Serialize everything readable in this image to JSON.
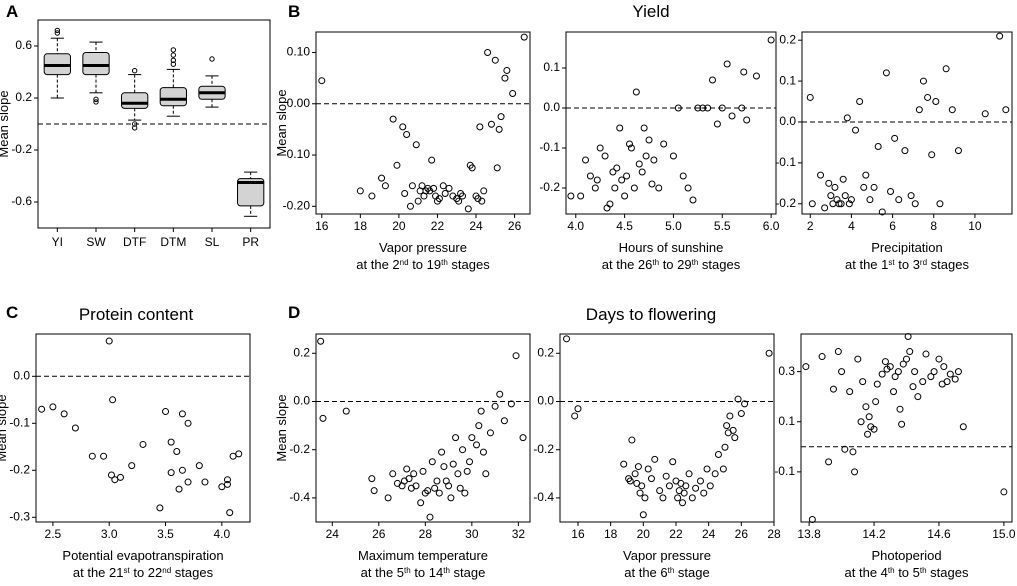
{
  "panel_labels": {
    "a": "A",
    "b": "B",
    "c": "C",
    "d": "D"
  },
  "group_titles": {
    "yield": "Yield",
    "protein": "Protein content",
    "flowering": "Days to flowering"
  },
  "chart_data": [
    {
      "id": "A",
      "type": "box",
      "title": "",
      "xlabel": "",
      "ylabel": "Mean slope",
      "ylim": [
        -0.8,
        0.8
      ],
      "yticks": [
        -0.6,
        -0.2,
        0.2,
        0.6
      ],
      "yticklabels": [
        "-0.6",
        "-0.2",
        "0.2",
        "0.6"
      ],
      "ref_line": 0,
      "categories": [
        "YI",
        "SW",
        "DTF",
        "DTM",
        "SL",
        "PR"
      ],
      "boxes": [
        {
          "q1": 0.38,
          "median": 0.45,
          "q3": 0.54,
          "low": 0.2,
          "high": 0.66,
          "outliers": [
            0.7,
            0.72
          ]
        },
        {
          "q1": 0.38,
          "median": 0.45,
          "q3": 0.55,
          "low": 0.24,
          "high": 0.63,
          "outliers": [
            0.19,
            0.17
          ]
        },
        {
          "q1": 0.12,
          "median": 0.16,
          "q3": 0.24,
          "low": 0.03,
          "high": 0.38,
          "outliers": [
            0.0,
            -0.03,
            0.41
          ]
        },
        {
          "q1": 0.14,
          "median": 0.19,
          "q3": 0.28,
          "low": 0.06,
          "high": 0.42,
          "outliers": [
            0.46,
            0.49,
            0.53,
            0.57
          ]
        },
        {
          "q1": 0.19,
          "median": 0.24,
          "q3": 0.29,
          "low": 0.13,
          "high": 0.37,
          "outliers": [
            0.5
          ]
        },
        {
          "q1": -0.63,
          "median": -0.45,
          "q3": -0.42,
          "low": -0.71,
          "high": -0.37,
          "outliers": []
        }
      ]
    },
    {
      "id": "B1",
      "type": "scatter",
      "group": "yield",
      "ylabel": "Mean slope",
      "xlabel": {
        "line1": "Vapor pressure",
        "pre": "at the 2",
        "sup1": "nd",
        "mid": " to 19",
        "sup2": "th",
        "post": " stages"
      },
      "xlim": [
        15.7,
        26.8
      ],
      "ylim": [
        -0.215,
        0.14
      ],
      "xticks": [
        16,
        18,
        20,
        22,
        24,
        26
      ],
      "xticklabels": [
        "16",
        "18",
        "20",
        "22",
        "24",
        "26"
      ],
      "yticks": [
        -0.2,
        -0.1,
        0.0,
        0.1
      ],
      "yticklabels": [
        "-0.20",
        "-0.10",
        "0.00",
        "0.10"
      ],
      "ref_line": 0,
      "x": [
        16.0,
        18.0,
        18.6,
        19.1,
        19.3,
        19.7,
        19.9,
        20.2,
        20.3,
        20.4,
        20.6,
        20.7,
        20.9,
        21.0,
        21.1,
        21.2,
        21.3,
        21.4,
        21.5,
        21.6,
        21.7,
        21.8,
        21.9,
        22.0,
        22.1,
        22.3,
        22.4,
        22.6,
        22.8,
        23.0,
        23.1,
        23.2,
        23.3,
        23.6,
        23.7,
        23.8,
        24.0,
        24.1,
        24.2,
        24.3,
        24.4,
        24.6,
        24.8,
        25.0,
        25.1,
        25.2,
        25.3,
        25.5,
        25.6,
        25.9,
        26.5
      ],
      "y": [
        0.045,
        -0.17,
        -0.18,
        -0.145,
        -0.16,
        -0.03,
        -0.12,
        -0.045,
        -0.175,
        -0.06,
        -0.2,
        -0.16,
        -0.08,
        -0.19,
        -0.17,
        -0.16,
        -0.18,
        -0.17,
        -0.165,
        -0.17,
        -0.11,
        -0.165,
        -0.18,
        -0.19,
        -0.185,
        -0.16,
        -0.175,
        -0.165,
        -0.18,
        -0.185,
        -0.19,
        -0.175,
        -0.18,
        -0.205,
        -0.12,
        -0.125,
        -0.18,
        -0.185,
        -0.045,
        -0.19,
        -0.17,
        0.1,
        -0.04,
        0.085,
        -0.125,
        -0.05,
        -0.025,
        0.05,
        0.065,
        0.02,
        0.13
      ]
    },
    {
      "id": "B2",
      "type": "scatter",
      "group": "yield",
      "ylabel": "",
      "xlabel": {
        "line1": "Hours of sunshine",
        "pre": "at the 26",
        "sup1": "th",
        "mid": " to 29",
        "sup2": "th",
        "post": " stages"
      },
      "xlim": [
        3.9,
        6.05
      ],
      "ylim": [
        -0.265,
        0.19
      ],
      "xticks": [
        4.0,
        4.5,
        5.0,
        5.5,
        6.0
      ],
      "xticklabels": [
        "4.0",
        "4.5",
        "5.0",
        "5.5",
        "6.0"
      ],
      "yticks": [
        -0.2,
        -0.1,
        0.0,
        0.1
      ],
      "yticklabels": [
        "-0.2",
        "-0.1",
        "0.0",
        "0.1"
      ],
      "ref_line": 0,
      "x": [
        3.95,
        4.05,
        4.1,
        4.15,
        4.2,
        4.22,
        4.25,
        4.3,
        4.32,
        4.35,
        4.38,
        4.4,
        4.42,
        4.45,
        4.47,
        4.5,
        4.52,
        4.55,
        4.57,
        4.6,
        4.62,
        4.65,
        4.68,
        4.7,
        4.72,
        4.75,
        4.78,
        4.8,
        4.85,
        4.9,
        5.0,
        5.05,
        5.1,
        5.15,
        5.2,
        5.25,
        5.3,
        5.35,
        5.4,
        5.45,
        5.5,
        5.55,
        5.6,
        5.7,
        5.72,
        5.75,
        5.85,
        6.0
      ],
      "y": [
        -0.22,
        -0.22,
        -0.13,
        -0.17,
        -0.2,
        -0.18,
        -0.1,
        -0.12,
        -0.25,
        -0.24,
        -0.16,
        -0.2,
        -0.15,
        -0.05,
        -0.18,
        -0.22,
        -0.17,
        -0.09,
        -0.1,
        -0.2,
        0.04,
        -0.14,
        -0.16,
        -0.05,
        -0.12,
        -0.08,
        -0.19,
        -0.13,
        -0.2,
        -0.09,
        -0.12,
        0.0,
        -0.17,
        -0.2,
        -0.23,
        0.0,
        0.0,
        0.0,
        0.07,
        -0.04,
        0.0,
        0.11,
        -0.02,
        0.0,
        0.09,
        -0.03,
        0.08,
        0.17
      ]
    },
    {
      "id": "B3",
      "type": "scatter",
      "group": "yield",
      "ylabel": "",
      "xlabel": {
        "line1": "Precipitation",
        "pre": "at the 1",
        "sup1": "st",
        "mid": " to 3",
        "sup2": "rd",
        "post": " stages"
      },
      "xlim": [
        1.6,
        11.8
      ],
      "ylim": [
        -0.225,
        0.22
      ],
      "xticks": [
        2,
        4,
        6,
        8,
        10
      ],
      "xticklabels": [
        "2",
        "4",
        "6",
        "8",
        "10"
      ],
      "yticks": [
        -0.2,
        -0.1,
        0.0,
        0.1,
        0.2
      ],
      "yticklabels": [
        "-0.2",
        "-0.1",
        "0.0",
        "0.1",
        "0.2"
      ],
      "ref_line": 0,
      "x": [
        2.0,
        2.1,
        2.5,
        2.7,
        2.9,
        3.0,
        3.1,
        3.2,
        3.3,
        3.4,
        3.5,
        3.6,
        3.7,
        3.8,
        3.9,
        4.0,
        4.2,
        4.4,
        4.6,
        4.7,
        4.9,
        5.1,
        5.3,
        5.5,
        5.7,
        5.9,
        6.1,
        6.3,
        6.6,
        6.9,
        7.1,
        7.3,
        7.5,
        7.7,
        7.9,
        8.1,
        8.3,
        8.6,
        8.9,
        9.2,
        10.5,
        11.2,
        11.5
      ],
      "y": [
        0.06,
        -0.2,
        -0.13,
        -0.21,
        -0.15,
        -0.18,
        -0.2,
        -0.16,
        -0.19,
        -0.2,
        -0.2,
        -0.14,
        -0.18,
        0.01,
        -0.2,
        -0.19,
        -0.02,
        0.05,
        -0.16,
        -0.13,
        -0.19,
        -0.16,
        -0.06,
        -0.22,
        0.12,
        -0.17,
        -0.04,
        -0.19,
        -0.07,
        -0.18,
        -0.2,
        0.03,
        0.1,
        0.06,
        -0.08,
        0.05,
        -0.2,
        0.13,
        0.03,
        -0.07,
        0.02,
        0.21,
        0.03
      ]
    },
    {
      "id": "C",
      "type": "scatter",
      "group": "protein",
      "ylabel": "Mean slope",
      "xlabel": {
        "line1": "Potential evapotranspiration",
        "pre": "at the 21",
        "sup1": "st",
        "mid": " to 22",
        "sup2": "nd",
        "post": " stages"
      },
      "xlim": [
        2.35,
        4.25
      ],
      "ylim": [
        -0.31,
        0.09
      ],
      "xticks": [
        2.5,
        3.0,
        3.5,
        4.0
      ],
      "xticklabels": [
        "2.5",
        "3.0",
        "3.5",
        "4.0"
      ],
      "yticks": [
        -0.3,
        -0.2,
        -0.1,
        0.0
      ],
      "yticklabels": [
        "-0.3",
        "-0.2",
        "-0.1",
        "0.0"
      ],
      "ref_line": 0,
      "x": [
        2.4,
        2.5,
        2.6,
        2.7,
        2.85,
        2.95,
        3.0,
        3.03,
        3.05,
        3.1,
        3.2,
        3.3,
        3.45,
        3.5,
        3.55,
        3.55,
        3.6,
        3.62,
        3.65,
        3.65,
        3.7,
        3.7,
        3.8,
        3.85,
        4.0,
        4.05,
        4.05,
        4.07,
        4.1,
        4.15,
        3.02
      ],
      "y": [
        -0.07,
        -0.065,
        -0.08,
        -0.11,
        -0.17,
        -0.17,
        0.075,
        -0.05,
        -0.22,
        -0.215,
        -0.19,
        -0.145,
        -0.28,
        -0.075,
        -0.14,
        -0.205,
        -0.16,
        -0.24,
        -0.08,
        -0.2,
        -0.1,
        -0.225,
        -0.19,
        -0.225,
        -0.235,
        -0.22,
        -0.23,
        -0.29,
        -0.17,
        -0.165,
        -0.21
      ]
    },
    {
      "id": "D1",
      "type": "scatter",
      "group": "flowering",
      "ylabel": "Mean slope",
      "xlabel": {
        "line1": "Maximum temperature",
        "pre": "at the 5",
        "sup1": "th",
        "mid": " to 14",
        "sup2": "th",
        "post": " stage"
      },
      "xlim": [
        23.3,
        32.5
      ],
      "ylim": [
        -0.5,
        0.28
      ],
      "xticks": [
        24,
        26,
        28,
        30,
        32
      ],
      "xticklabels": [
        "24",
        "26",
        "28",
        "30",
        "32"
      ],
      "yticks": [
        -0.4,
        -0.2,
        0.0,
        0.2
      ],
      "yticklabels": [
        "-0.4",
        "-0.2",
        "0.0",
        "0.2"
      ],
      "ref_line": 0,
      "x": [
        23.5,
        23.6,
        24.6,
        25.7,
        25.8,
        26.4,
        26.6,
        26.8,
        27.0,
        27.1,
        27.2,
        27.3,
        27.4,
        27.5,
        27.6,
        27.8,
        27.9,
        28.0,
        28.1,
        28.2,
        28.3,
        28.4,
        28.5,
        28.6,
        28.7,
        28.8,
        28.9,
        29.0,
        29.1,
        29.2,
        29.3,
        29.4,
        29.5,
        29.6,
        29.7,
        29.8,
        29.9,
        30.0,
        30.2,
        30.3,
        30.4,
        30.5,
        30.6,
        30.8,
        31.0,
        31.2,
        31.4,
        31.7,
        31.9,
        32.2
      ],
      "y": [
        0.25,
        -0.07,
        -0.04,
        -0.32,
        -0.37,
        -0.4,
        -0.3,
        -0.34,
        -0.35,
        -0.33,
        -0.28,
        -0.32,
        -0.36,
        -0.3,
        -0.35,
        -0.42,
        -0.29,
        -0.38,
        -0.37,
        -0.48,
        -0.25,
        -0.36,
        -0.33,
        -0.38,
        -0.21,
        -0.27,
        -0.33,
        -0.35,
        -0.4,
        -0.26,
        -0.15,
        -0.3,
        -0.36,
        -0.2,
        -0.38,
        -0.29,
        -0.25,
        -0.15,
        -0.18,
        -0.1,
        -0.04,
        -0.21,
        -0.3,
        -0.13,
        -0.02,
        0.03,
        -0.08,
        -0.01,
        0.19,
        -0.15
      ]
    },
    {
      "id": "D2",
      "type": "scatter",
      "group": "flowering",
      "ylabel": "",
      "xlabel": {
        "line1": "Vapor pressure",
        "pre": "at the 6",
        "sup1": "th",
        "mid": "",
        "sup2": "",
        "post": " stage"
      },
      "xlim": [
        14.9,
        28.0
      ],
      "ylim": [
        -0.5,
        0.28
      ],
      "xticks": [
        16,
        18,
        20,
        22,
        24,
        26,
        28
      ],
      "xticklabels": [
        "16",
        "18",
        "20",
        "22",
        "24",
        "26",
        "28"
      ],
      "yticks": [
        -0.4,
        -0.2,
        0.0,
        0.2
      ],
      "yticklabels": [
        "-0.4",
        "-0.2",
        "0.0",
        "0.2"
      ],
      "ref_line": 0,
      "x": [
        15.3,
        15.8,
        16.0,
        18.8,
        19.1,
        19.2,
        19.3,
        19.5,
        19.6,
        19.7,
        19.8,
        19.9,
        20.0,
        20.1,
        20.3,
        20.5,
        20.7,
        21.0,
        21.2,
        21.4,
        21.6,
        21.8,
        22.0,
        22.1,
        22.2,
        22.3,
        22.4,
        22.5,
        22.6,
        22.8,
        23.0,
        23.2,
        23.5,
        23.7,
        23.9,
        24.1,
        24.4,
        24.6,
        24.9,
        25.0,
        25.1,
        25.2,
        25.3,
        25.5,
        25.6,
        25.8,
        26.0,
        26.2,
        27.7
      ],
      "y": [
        0.26,
        -0.06,
        -0.03,
        -0.26,
        -0.32,
        -0.33,
        -0.16,
        -0.3,
        -0.34,
        -0.27,
        -0.38,
        -0.35,
        -0.47,
        -0.4,
        -0.28,
        -0.32,
        -0.24,
        -0.37,
        -0.4,
        -0.31,
        -0.35,
        -0.25,
        -0.33,
        -0.4,
        -0.37,
        -0.34,
        -0.42,
        -0.38,
        -0.35,
        -0.3,
        -0.4,
        -0.36,
        -0.33,
        -0.38,
        -0.28,
        -0.35,
        -0.3,
        -0.22,
        -0.28,
        -0.19,
        -0.1,
        -0.13,
        -0.06,
        -0.12,
        -0.15,
        0.01,
        -0.05,
        -0.01,
        0.2
      ]
    },
    {
      "id": "D3",
      "type": "scatter",
      "group": "flowering",
      "ylabel": "",
      "xlabel": {
        "line1": "Photoperiod",
        "pre": "at the 4",
        "sup1": "th",
        "mid": " to 5",
        "sup2": "th",
        "post": " stages"
      },
      "xlim": [
        13.75,
        15.05
      ],
      "ylim": [
        -0.3,
        0.45
      ],
      "xticks": [
        13.8,
        14.2,
        14.6,
        15.0
      ],
      "xticklabels": [
        "13.8",
        "14.2",
        "14.6",
        "15.0"
      ],
      "yticks": [
        -0.1,
        0.1,
        0.3
      ],
      "yticklabels": [
        "-0.1",
        "0.1",
        "0.3"
      ],
      "ref_line": 0,
      "x": [
        13.78,
        13.82,
        13.88,
        13.92,
        13.95,
        13.98,
        14.0,
        14.02,
        14.05,
        14.07,
        14.08,
        14.1,
        14.12,
        14.13,
        14.15,
        14.16,
        14.17,
        14.18,
        14.2,
        14.21,
        14.22,
        14.25,
        14.27,
        14.28,
        14.3,
        14.32,
        14.33,
        14.35,
        14.36,
        14.37,
        14.38,
        14.4,
        14.41,
        14.42,
        14.44,
        14.45,
        14.47,
        14.5,
        14.52,
        14.55,
        14.57,
        14.6,
        14.62,
        14.63,
        14.65,
        14.67,
        14.7,
        14.72,
        14.75,
        15.0
      ],
      "y": [
        0.32,
        -0.29,
        0.36,
        -0.06,
        0.23,
        0.38,
        0.3,
        -0.01,
        0.22,
        -0.02,
        -0.1,
        0.35,
        0.1,
        0.26,
        0.16,
        0.05,
        0.12,
        0.08,
        0.07,
        0.18,
        0.25,
        0.29,
        0.34,
        0.31,
        0.32,
        0.22,
        0.28,
        0.3,
        0.15,
        0.09,
        0.33,
        0.35,
        0.44,
        0.38,
        0.24,
        0.3,
        0.2,
        0.26,
        0.37,
        0.28,
        0.3,
        0.35,
        0.25,
        0.32,
        0.26,
        0.29,
        0.27,
        0.3,
        0.08,
        -0.18
      ]
    }
  ]
}
